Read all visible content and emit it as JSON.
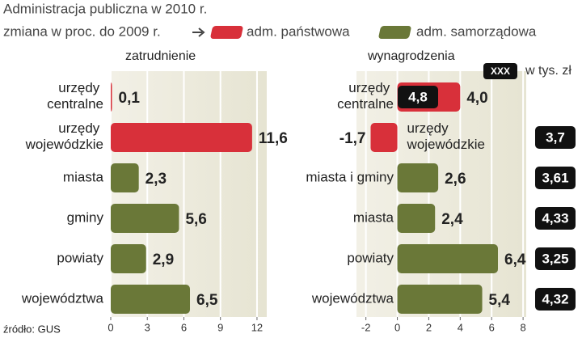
{
  "title": "Administracja publiczna w 2010 r.",
  "subtitle": "zmiana w proc. do 2009 r.",
  "source": "źródło: GUS",
  "chart_data": [
    {
      "type": "bar",
      "orientation": "horizontal",
      "title": "zatrudnienie",
      "categories": [
        "urzędy centralne",
        "urzędy wojewódzkie",
        "miasta",
        "gminy",
        "powiaty",
        "województwa"
      ],
      "series": [
        {
          "name": "adm. państwowa",
          "color": "#d8303a",
          "values": [
            0.1,
            11.6,
            null,
            null,
            null,
            null
          ],
          "value_labels": [
            "0,1",
            "11,6",
            null,
            null,
            null,
            null
          ]
        },
        {
          "name": "adm. samorządowa",
          "color": "#6a7838",
          "values": [
            null,
            null,
            2.3,
            5.6,
            2.9,
            6.5
          ],
          "value_labels": [
            null,
            null,
            "2,3",
            "5,6",
            "2,9",
            "6,5"
          ]
        }
      ],
      "xlim": [
        0,
        12.8
      ],
      "xticks": [
        0,
        3,
        6,
        9,
        12
      ],
      "grid": true
    },
    {
      "type": "bar",
      "orientation": "horizontal",
      "title": "wynagrodzenia",
      "categories": [
        "urzędy centralne",
        "urzędy wojewódzkie",
        "miasta i gminy",
        "miasta",
        "powiaty",
        "województwa"
      ],
      "series": [
        {
          "color": "#d8303a",
          "values": [
            4.0,
            -1.7,
            null,
            null,
            null,
            null
          ],
          "value_labels": [
            "4,0",
            "-1,7",
            null,
            null,
            null,
            null
          ]
        },
        {
          "color": "#6a7838",
          "values": [
            null,
            null,
            2.6,
            2.4,
            6.4,
            5.4
          ],
          "value_labels": [
            null,
            null,
            "2,6",
            "2,4",
            "6,4",
            "5,4"
          ]
        }
      ],
      "salaries": {
        "box_label": "XXX",
        "label": "w tys. zł",
        "values": [
          4.8,
          3.7,
          3.61,
          4.33,
          3.25,
          4.32
        ],
        "value_labels": [
          "4,8",
          "3,7",
          "3,61",
          "4,33",
          "3,25",
          "4,32"
        ]
      },
      "xlim": [
        -2.6,
        8.2
      ],
      "xticks": [
        -2,
        0,
        2,
        4,
        6,
        8
      ],
      "grid": true
    }
  ]
}
